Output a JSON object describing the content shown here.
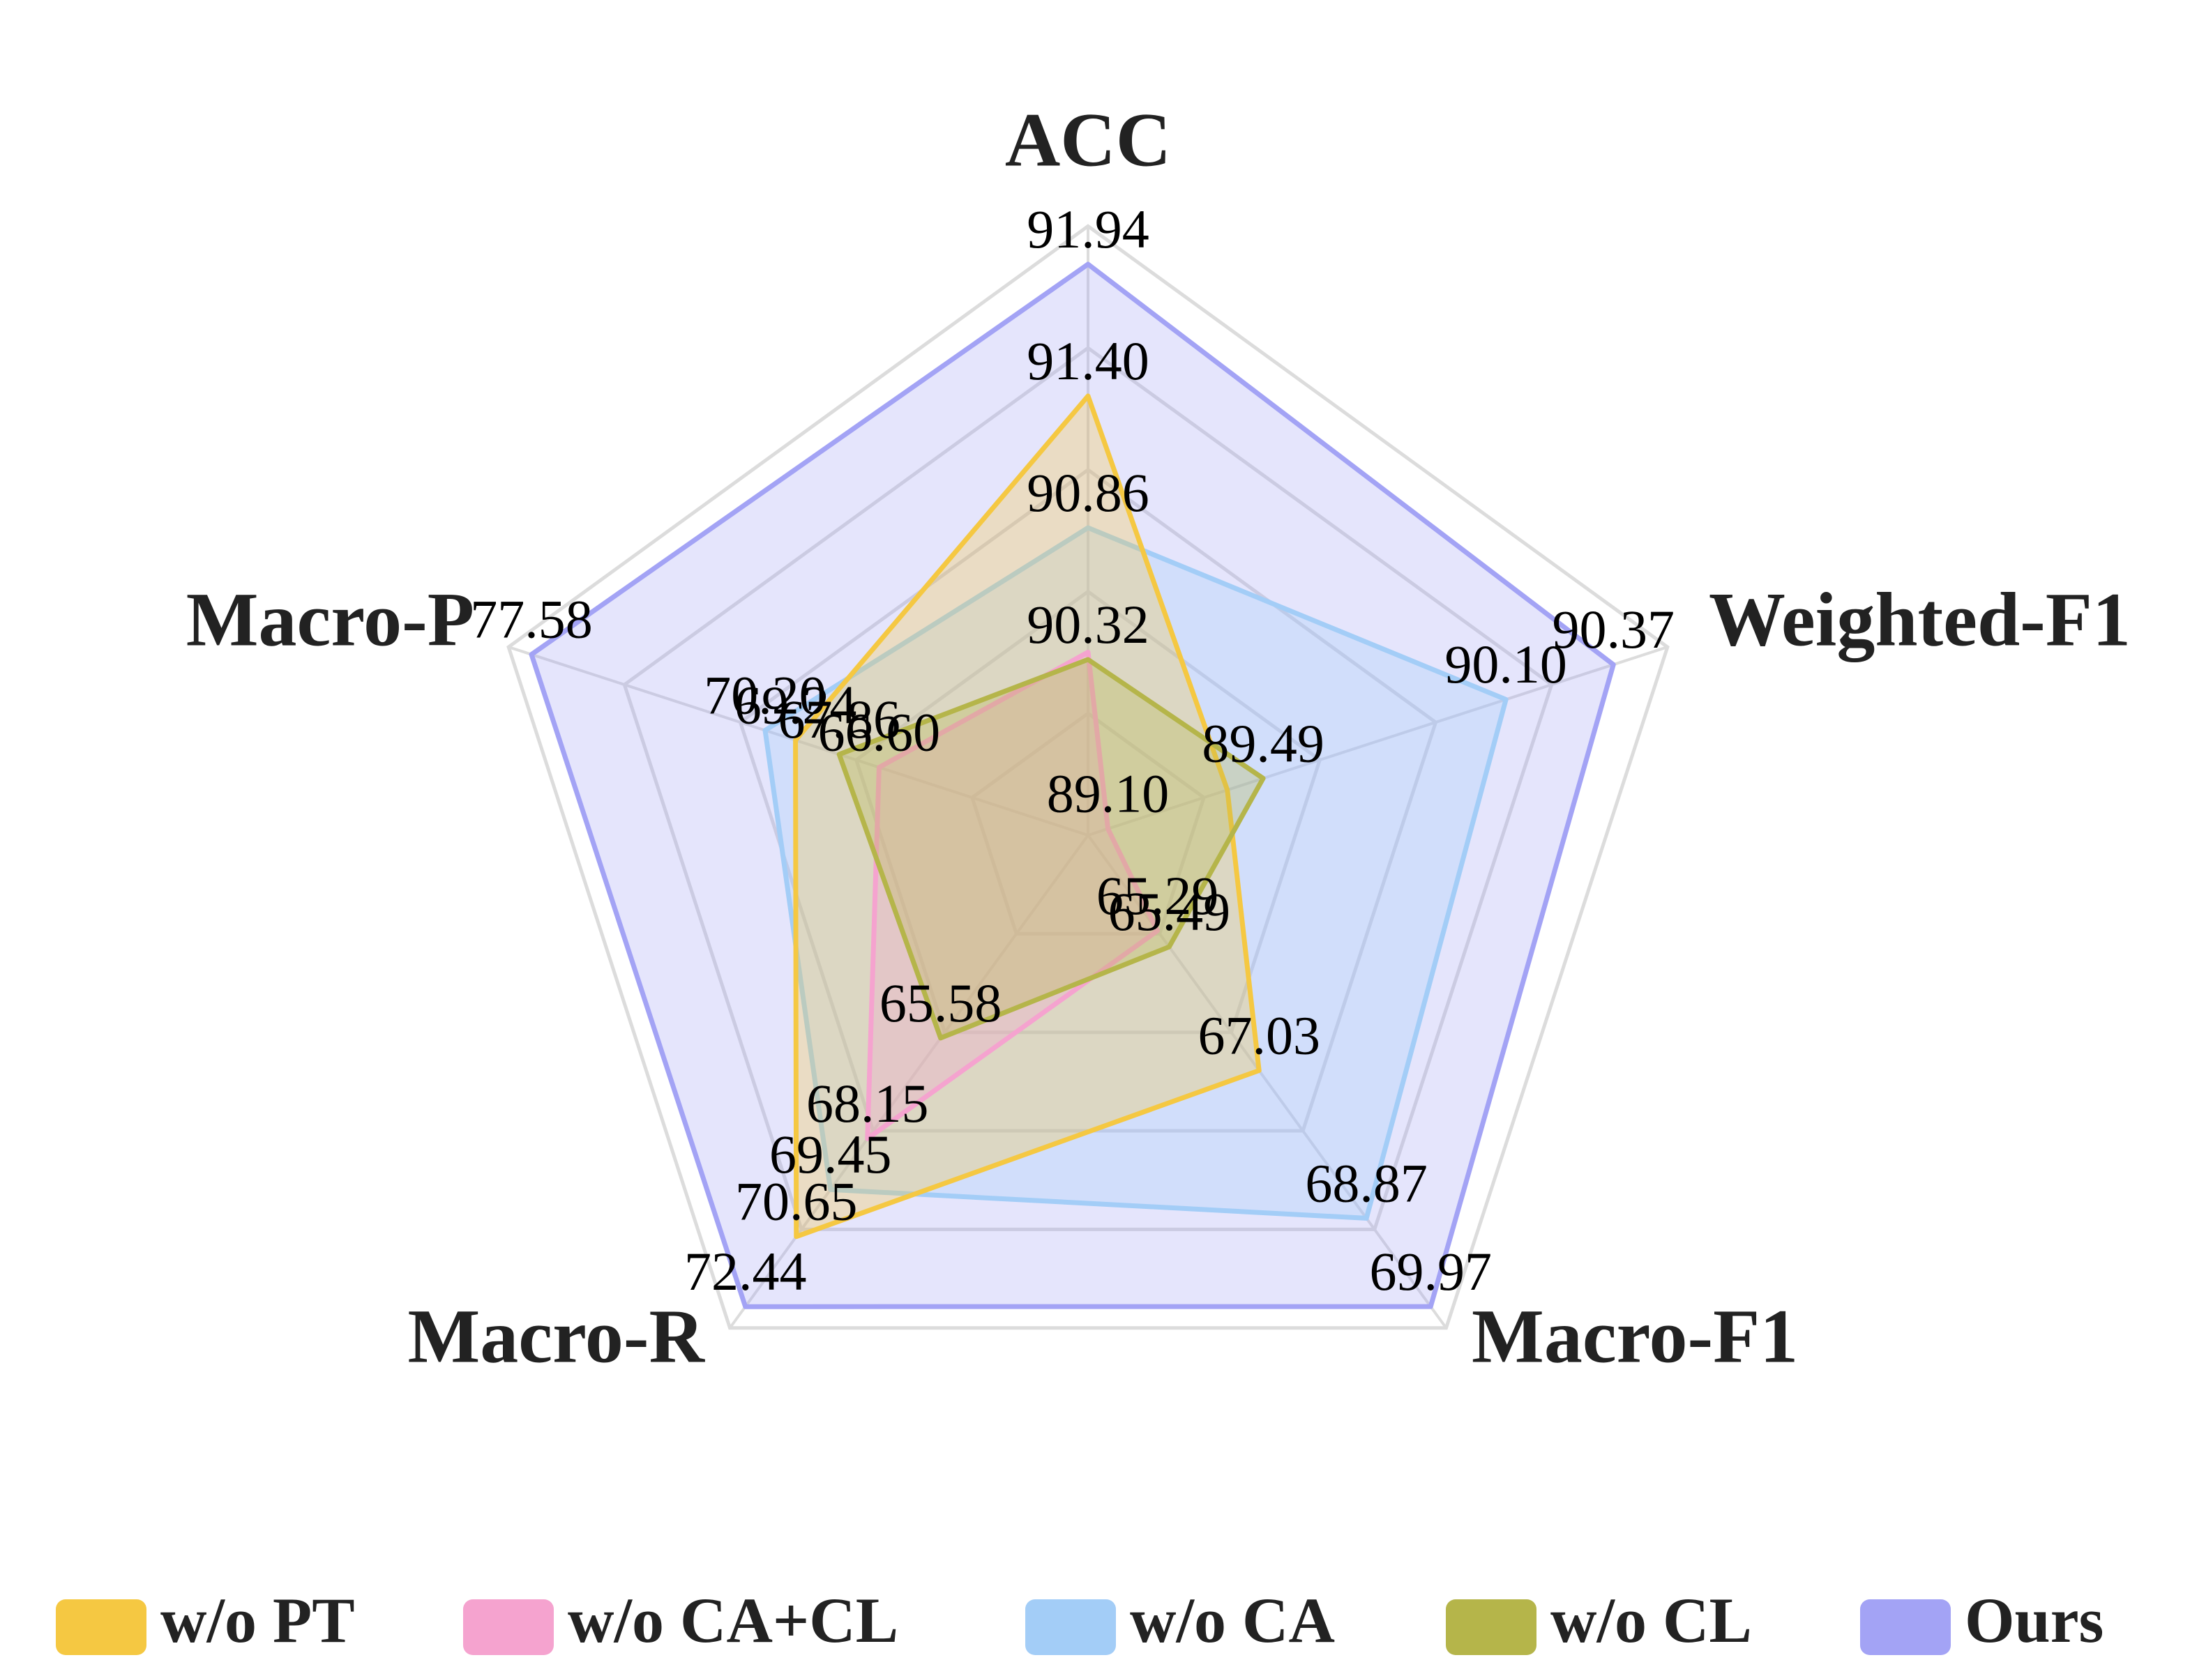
{
  "chart_data": {
    "type": "radar",
    "axes": [
      "ACC",
      "Weighted-F1",
      "Macro-F1",
      "Macro-R",
      "Macro-P"
    ],
    "axis_ranges": [
      [
        89.6,
        92.0
      ],
      [
        89.05,
        90.45
      ],
      [
        64.1,
        70.0
      ],
      [
        60.4,
        72.5
      ],
      [
        60.0,
        77.6
      ]
    ],
    "grid": true,
    "legend": "bottom",
    "series": [
      {
        "name": "w/o PT",
        "color": "#f5c842",
        "values": [
          91.4,
          89.4,
          67.03,
          70.65,
          69.24
        ],
        "value_labels": [
          "91.40",
          null,
          "67.03",
          "70.65",
          "69.24"
        ]
      },
      {
        "name": "w/o CA+CL",
        "color": "#f5a3cf",
        "values": [
          90.35,
          89.1,
          65.29,
          68.15,
          66.6
        ],
        "value_labels": [
          null,
          "89.10",
          "65.29",
          "68.15",
          "66.60"
        ]
      },
      {
        "name": "w/o CA",
        "color": "#a3cdf7",
        "values": [
          90.86,
          90.1,
          68.87,
          69.45,
          70.2
        ],
        "value_labels": [
          "90.86",
          "90.10",
          "68.87",
          "69.45",
          "70.20"
        ]
      },
      {
        "name": "w/o CL",
        "color": "#b5b54a",
        "values": [
          90.32,
          89.49,
          65.49,
          65.58,
          67.86
        ],
        "value_labels": [
          "90.32",
          "89.49",
          "65.49",
          "65.58",
          "67.86"
        ]
      },
      {
        "name": "Ours",
        "color": "#a3a3f5",
        "values": [
          91.94,
          90.37,
          69.97,
          72.44,
          77.58
        ],
        "value_labels": [
          "91.94",
          "90.37",
          "69.97",
          "72.44",
          "77.58"
        ]
      }
    ]
  }
}
